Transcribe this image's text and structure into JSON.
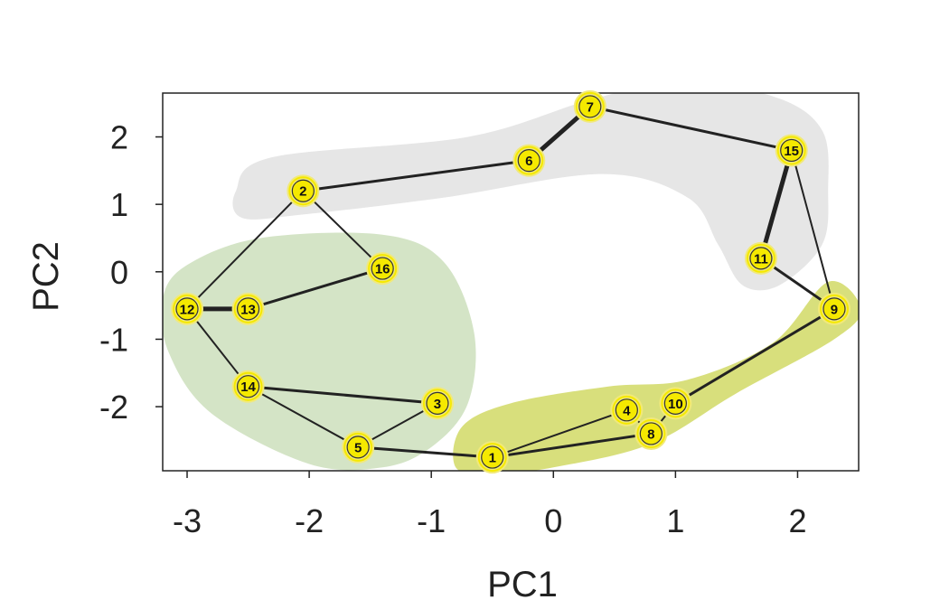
{
  "chart_data": {
    "type": "scatter",
    "title": "",
    "xlabel": "PC1",
    "ylabel": "PC2",
    "xlim": [
      -3.2,
      2.5
    ],
    "ylim": [
      -2.95,
      2.65
    ],
    "xticks": [
      -3,
      -2,
      -1,
      0,
      1,
      2
    ],
    "yticks": [
      -2,
      -1,
      0,
      1,
      2
    ],
    "grid": false,
    "legend": "none",
    "colors": {
      "node_fill": "#f5e900",
      "node_ring": "#f1e97a",
      "edge": "#222222",
      "region_gray": "#e6e6e6",
      "region_green": "#d4e4c6",
      "region_olive": "#d8df7c"
    },
    "points": [
      {
        "id": "1",
        "x": -0.5,
        "y": -2.75
      },
      {
        "id": "2",
        "x": -2.05,
        "y": 1.2
      },
      {
        "id": "3",
        "x": -0.95,
        "y": -1.95
      },
      {
        "id": "4",
        "x": 0.6,
        "y": -2.05
      },
      {
        "id": "5",
        "x": -1.6,
        "y": -2.6
      },
      {
        "id": "6",
        "x": -0.2,
        "y": 1.65
      },
      {
        "id": "7",
        "x": 0.3,
        "y": 2.45
      },
      {
        "id": "8",
        "x": 0.8,
        "y": -2.4
      },
      {
        "id": "9",
        "x": 2.3,
        "y": -0.55
      },
      {
        "id": "10",
        "x": 1.0,
        "y": -1.95
      },
      {
        "id": "11",
        "x": 1.7,
        "y": 0.2
      },
      {
        "id": "12",
        "x": -3.0,
        "y": -0.55
      },
      {
        "id": "13",
        "x": -2.5,
        "y": -0.55
      },
      {
        "id": "14",
        "x": -2.5,
        "y": -1.7
      },
      {
        "id": "15",
        "x": 1.95,
        "y": 1.8
      },
      {
        "id": "16",
        "x": -1.4,
        "y": 0.05
      }
    ],
    "edges": [
      {
        "from": "1",
        "to": "5",
        "weight": 3
      },
      {
        "from": "1",
        "to": "4",
        "weight": 2
      },
      {
        "from": "1",
        "to": "8",
        "weight": 3
      },
      {
        "from": "4",
        "to": "8",
        "weight": 2
      },
      {
        "from": "8",
        "to": "10",
        "weight": 2
      },
      {
        "from": "10",
        "to": "9",
        "weight": 3
      },
      {
        "from": "9",
        "to": "11",
        "weight": 3
      },
      {
        "from": "9",
        "to": "15",
        "weight": 2
      },
      {
        "from": "11",
        "to": "15",
        "weight": 5
      },
      {
        "from": "15",
        "to": "7",
        "weight": 3
      },
      {
        "from": "7",
        "to": "6",
        "weight": 5
      },
      {
        "from": "6",
        "to": "2",
        "weight": 3
      },
      {
        "from": "2",
        "to": "12",
        "weight": 2
      },
      {
        "from": "2",
        "to": "16",
        "weight": 2
      },
      {
        "from": "16",
        "to": "13",
        "weight": 3
      },
      {
        "from": "13",
        "to": "12",
        "weight": 5
      },
      {
        "from": "12",
        "to": "14",
        "weight": 2
      },
      {
        "from": "14",
        "to": "3",
        "weight": 3
      },
      {
        "from": "14",
        "to": "5",
        "weight": 2
      },
      {
        "from": "3",
        "to": "5",
        "weight": 2
      }
    ],
    "regions": [
      {
        "color": "region_gray",
        "path": [
          [
            -2.6,
            1.2
          ],
          [
            -2.3,
            1.7
          ],
          [
            -0.7,
            2.0
          ],
          [
            0.3,
            2.55
          ],
          [
            1.0,
            2.8
          ],
          [
            1.8,
            2.6
          ],
          [
            2.2,
            2.1
          ],
          [
            2.25,
            1.2
          ],
          [
            2.2,
            0.4
          ],
          [
            1.85,
            -0.2
          ],
          [
            1.55,
            -0.2
          ],
          [
            1.35,
            0.4
          ],
          [
            1.1,
            1.1
          ],
          [
            0.4,
            1.45
          ],
          [
            -0.9,
            1.1
          ],
          [
            -2.05,
            0.85
          ],
          [
            -2.55,
            0.8
          ]
        ]
      },
      {
        "color": "region_green",
        "path": [
          [
            -3.2,
            -0.4
          ],
          [
            -3.0,
            0.1
          ],
          [
            -2.4,
            0.5
          ],
          [
            -1.4,
            0.55
          ],
          [
            -0.9,
            0.15
          ],
          [
            -0.65,
            -0.9
          ],
          [
            -0.7,
            -1.95
          ],
          [
            -1.0,
            -2.6
          ],
          [
            -1.4,
            -2.9
          ],
          [
            -2.0,
            -2.85
          ],
          [
            -2.8,
            -2.1
          ],
          [
            -3.15,
            -1.2
          ]
        ]
      },
      {
        "color": "region_olive",
        "path": [
          [
            -0.8,
            -2.9
          ],
          [
            -0.75,
            -2.3
          ],
          [
            -0.35,
            -1.95
          ],
          [
            0.45,
            -1.7
          ],
          [
            1.1,
            -1.6
          ],
          [
            1.8,
            -1.05
          ],
          [
            2.25,
            -0.15
          ],
          [
            2.52,
            -0.55
          ],
          [
            2.3,
            -1.0
          ],
          [
            1.5,
            -1.8
          ],
          [
            0.8,
            -2.55
          ],
          [
            0.0,
            -2.9
          ],
          [
            -0.5,
            -3.0
          ]
        ]
      }
    ]
  }
}
